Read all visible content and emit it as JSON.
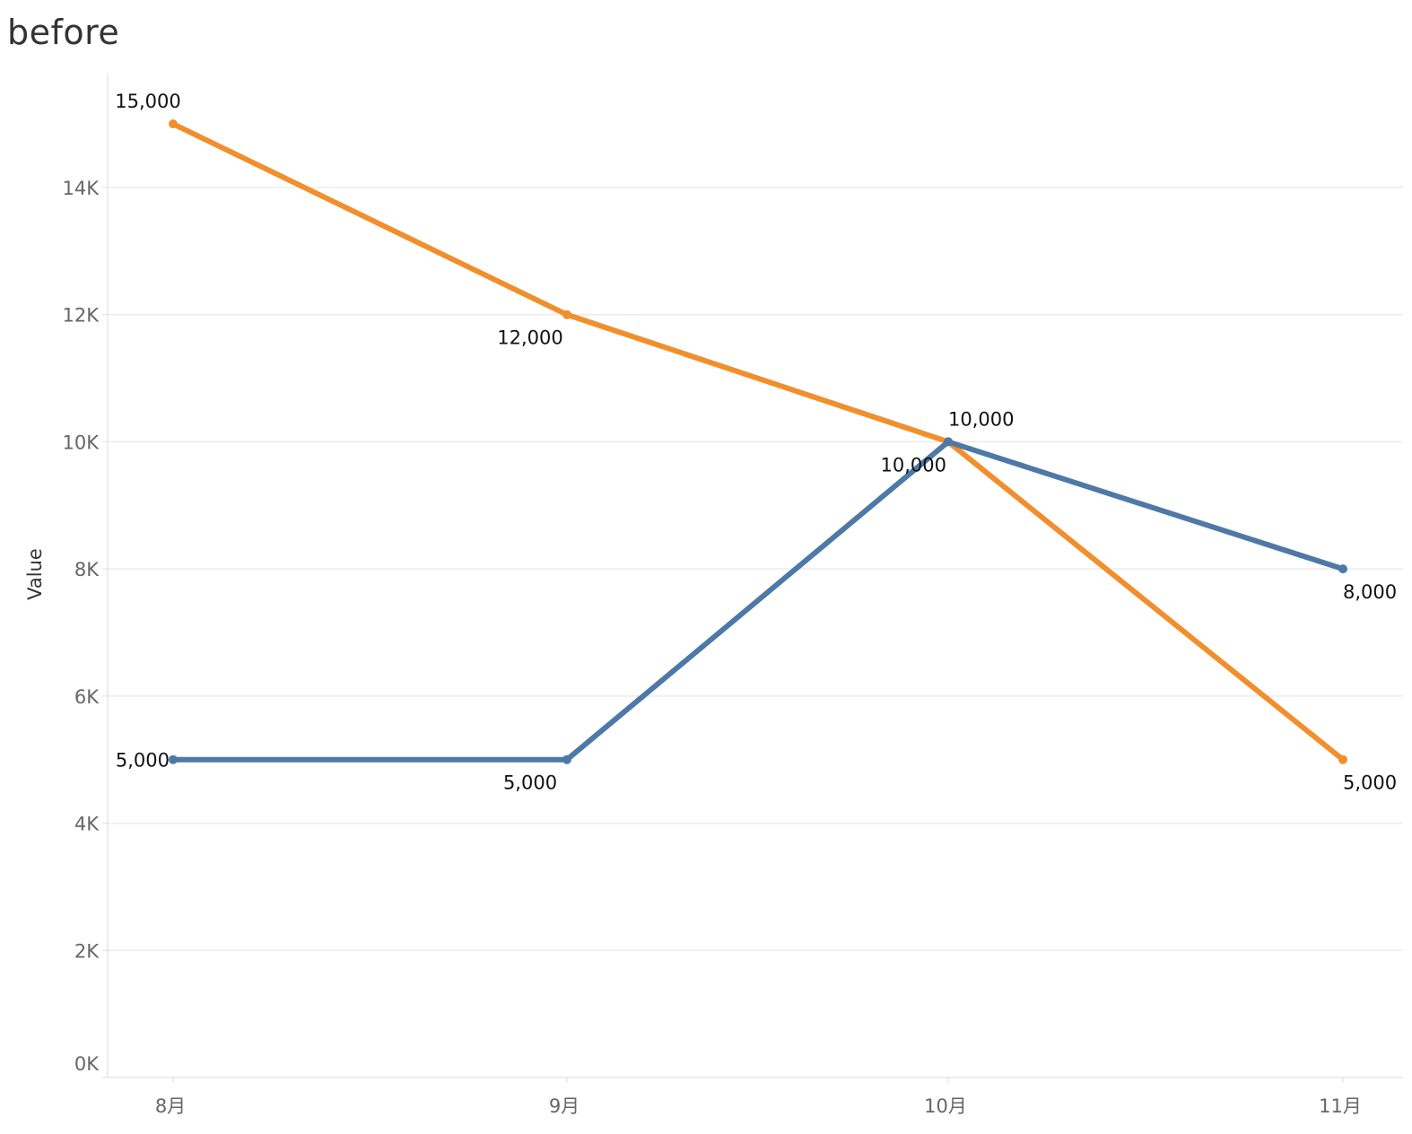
{
  "chart_data": {
    "type": "line",
    "title": "before",
    "xlabel": "",
    "ylabel": "Value",
    "categories": [
      "8月",
      "9月",
      "10月",
      "11月"
    ],
    "ylim": [
      0,
      16000
    ],
    "yticks": [
      0,
      2000,
      4000,
      6000,
      8000,
      10000,
      12000,
      14000
    ],
    "ytick_labels": [
      "0K",
      "2K",
      "4K",
      "6K",
      "8K",
      "10K",
      "12K",
      "14K"
    ],
    "grid": true,
    "legend": "none",
    "series": [
      {
        "color": "#f28e2b",
        "values": [
          15000,
          12000,
          10000,
          5000
        ],
        "labels": [
          "15,000",
          "12,000",
          "10,000",
          "5,000"
        ],
        "label_positions": [
          "above",
          "below",
          "below-left",
          "below"
        ]
      },
      {
        "color": "#4e79a7",
        "values": [
          5000,
          5000,
          10000,
          8000
        ],
        "labels": [
          "5,000",
          "5,000",
          "10,000",
          "8,000"
        ],
        "label_positions": [
          "left",
          "below",
          "above",
          "below"
        ]
      }
    ]
  }
}
